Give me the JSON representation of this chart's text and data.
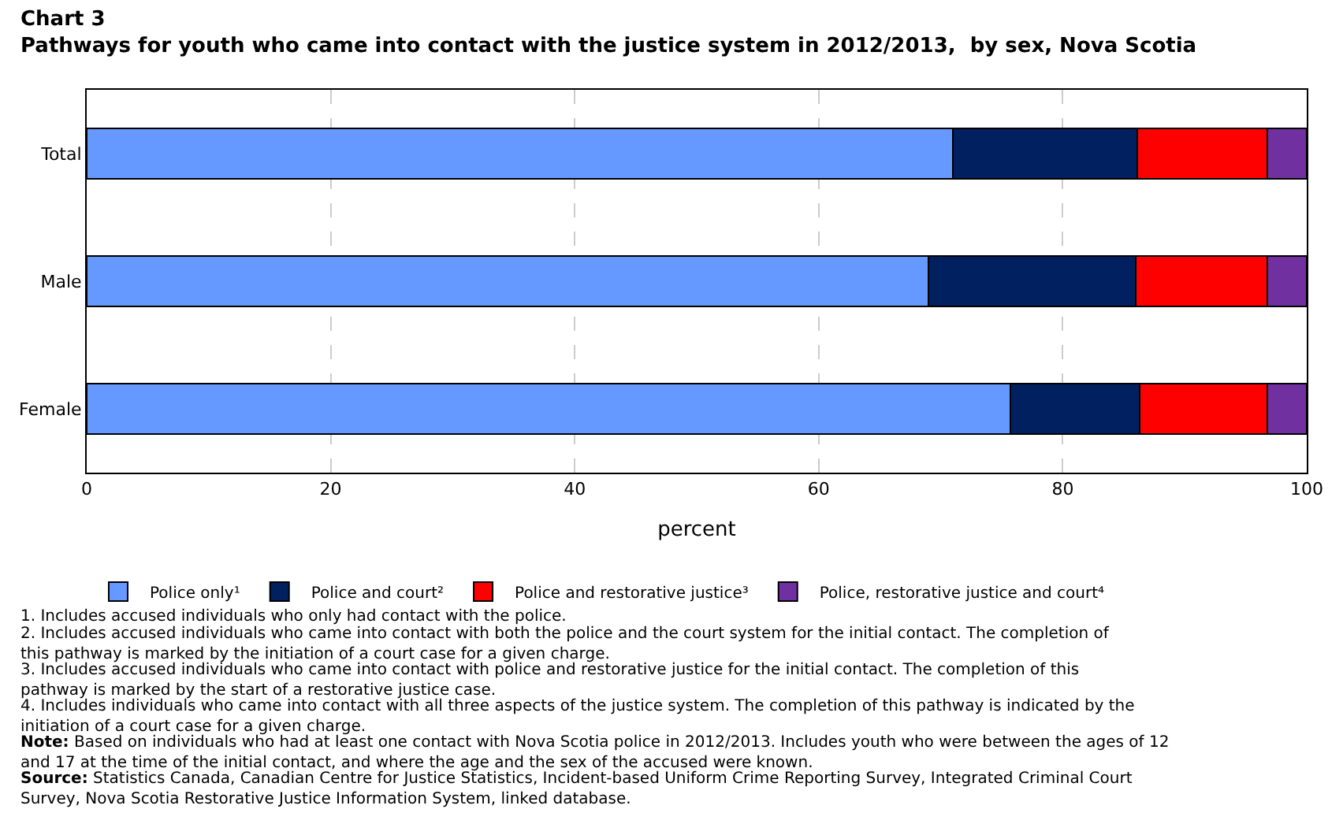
{
  "chart_data": {
    "type": "bar",
    "orientation": "horizontal",
    "stacked": true,
    "title": "Chart 3",
    "subtitle": "Pathways for youth who came into contact with the justice system in 2012/2013,  by sex, Nova Scotia",
    "xlabel": "percent",
    "categories": [
      "Total",
      "Male",
      "Female"
    ],
    "series": [
      {
        "name": "Police only¹",
        "color": "#6699ff",
        "values": [
          71.0,
          69.0,
          75.7
        ]
      },
      {
        "name": "Police and court²",
        "color": "#002060",
        "values": [
          15.1,
          17.0,
          10.6
        ]
      },
      {
        "name": "Police and restorative justice³",
        "color": "#ff0000",
        "values": [
          10.7,
          10.8,
          10.5
        ]
      },
      {
        "name": "Police, restorative justice and court⁴",
        "color": "#7030a0",
        "values": [
          3.2,
          3.2,
          3.2
        ]
      }
    ],
    "xlim": [
      0,
      100
    ],
    "xticks": [
      0,
      20,
      40,
      60,
      80,
      100
    ],
    "grid": "x",
    "legend": "bottom",
    "annotations": [
      "1. Includes accused individuals who only had contact with the police.",
      "2. Includes accused individuals who came into contact with both the police and the court system for the initial contact. The completion of this pathway is marked by the initiation of a court case for a given charge.",
      "3. Includes accused individuals who came into contact with police and restorative justice for the initial contact. The completion of this pathway is marked by the start of a restorative justice case.",
      "4. Includes individuals who came into contact with all three aspects of the justice system. The completion of this pathway is indicated by the initiation of a court case for a given charge.",
      "Note: Based on individuals who had at least one contact with Nova Scotia police in 2012/2013. Includes youth who were between the ages of 12 and 17 at the time of the initial contact, and where the age and the sex of the accused were known.",
      "Source: Statistics Canada, Canadian Centre for Justice Statistics, Incident-based Uniform Crime Reporting Survey, Integrated Criminal Court Survey, Nova Scotia Restorative Justice Information System, linked database."
    ]
  }
}
